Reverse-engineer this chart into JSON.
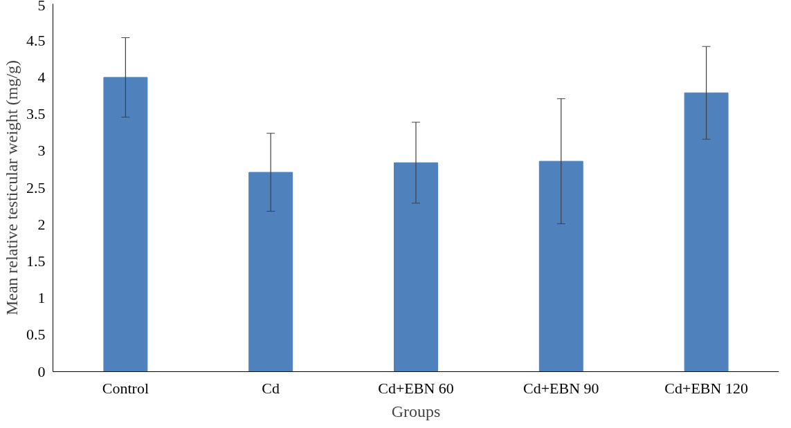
{
  "chart_data": {
    "type": "bar",
    "xlabel": "Groups",
    "ylabel": "Mean relative testicular weight (mg/g)",
    "categories": [
      "Control",
      "Cd",
      "Cd+EBN 60",
      "Cd+EBN 90",
      "Cd+EBN 120"
    ],
    "values": [
      4.0,
      2.71,
      2.84,
      2.86,
      3.79
    ],
    "errors": [
      0.54,
      0.53,
      0.55,
      0.85,
      0.63
    ],
    "color": "#4f81bd",
    "ylim": [
      0,
      5
    ],
    "yticks": [
      0,
      0.5,
      1,
      1.5,
      2,
      2.5,
      3,
      3.5,
      4,
      4.5,
      5
    ],
    "grid": false
  }
}
